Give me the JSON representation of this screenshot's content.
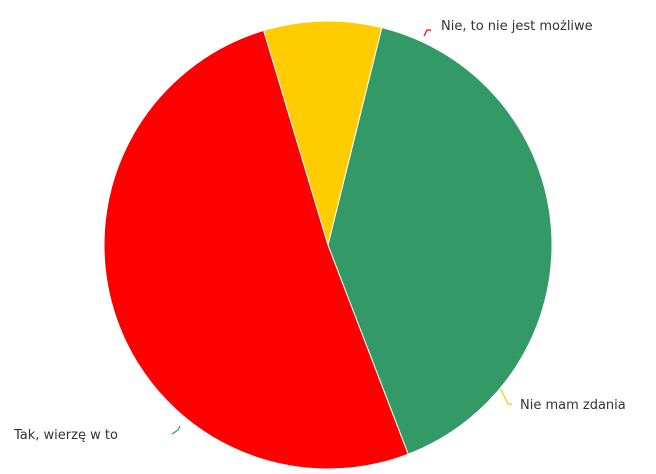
{
  "chart_data": {
    "type": "pie",
    "title": "",
    "slices": [
      {
        "label": "Nie, to nie jest możliwe",
        "value": 51.2,
        "color": "#ff0000"
      },
      {
        "label": "Nie mam zdania",
        "value": 8.5,
        "color": "#ffcc00"
      },
      {
        "label": "Tak, wierzę w to",
        "value": 40.3,
        "color": "#339966"
      }
    ],
    "legend": "none"
  }
}
